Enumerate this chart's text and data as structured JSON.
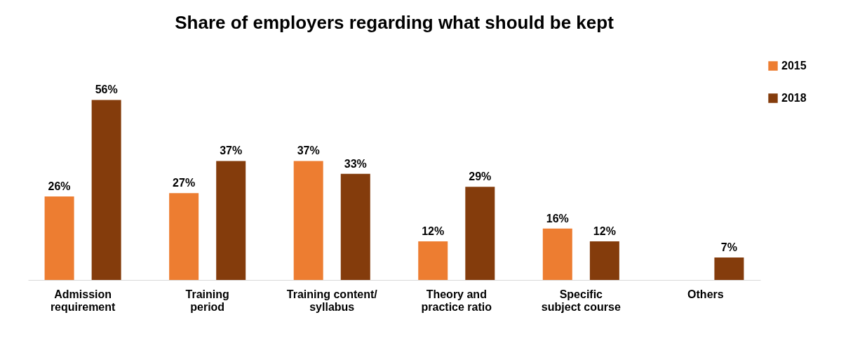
{
  "chart_data": {
    "type": "bar",
    "title": "Share of employers regarding what should be kept",
    "categories": [
      "Admission\nrequirement",
      "Training\nperiod",
      "Training content/\nsyllabus",
      "Theory and\npractice ratio",
      "Specific\nsubject course",
      "Others"
    ],
    "tick_labels": "x",
    "series": [
      {
        "name": "2015",
        "color": "#ed7d31",
        "values": [
          26,
          27,
          37,
          12,
          16,
          null
        ],
        "value_labels": [
          "26%",
          "27%",
          "37%",
          "12%",
          "16%",
          null
        ]
      },
      {
        "name": "2018",
        "color": "#843c0c",
        "values": [
          56,
          37,
          33,
          29,
          12,
          7
        ],
        "value_labels": [
          "56%",
          "37%",
          "33%",
          "29%",
          "12%",
          "7%"
        ]
      }
    ],
    "legend": "right",
    "grid": false
  }
}
